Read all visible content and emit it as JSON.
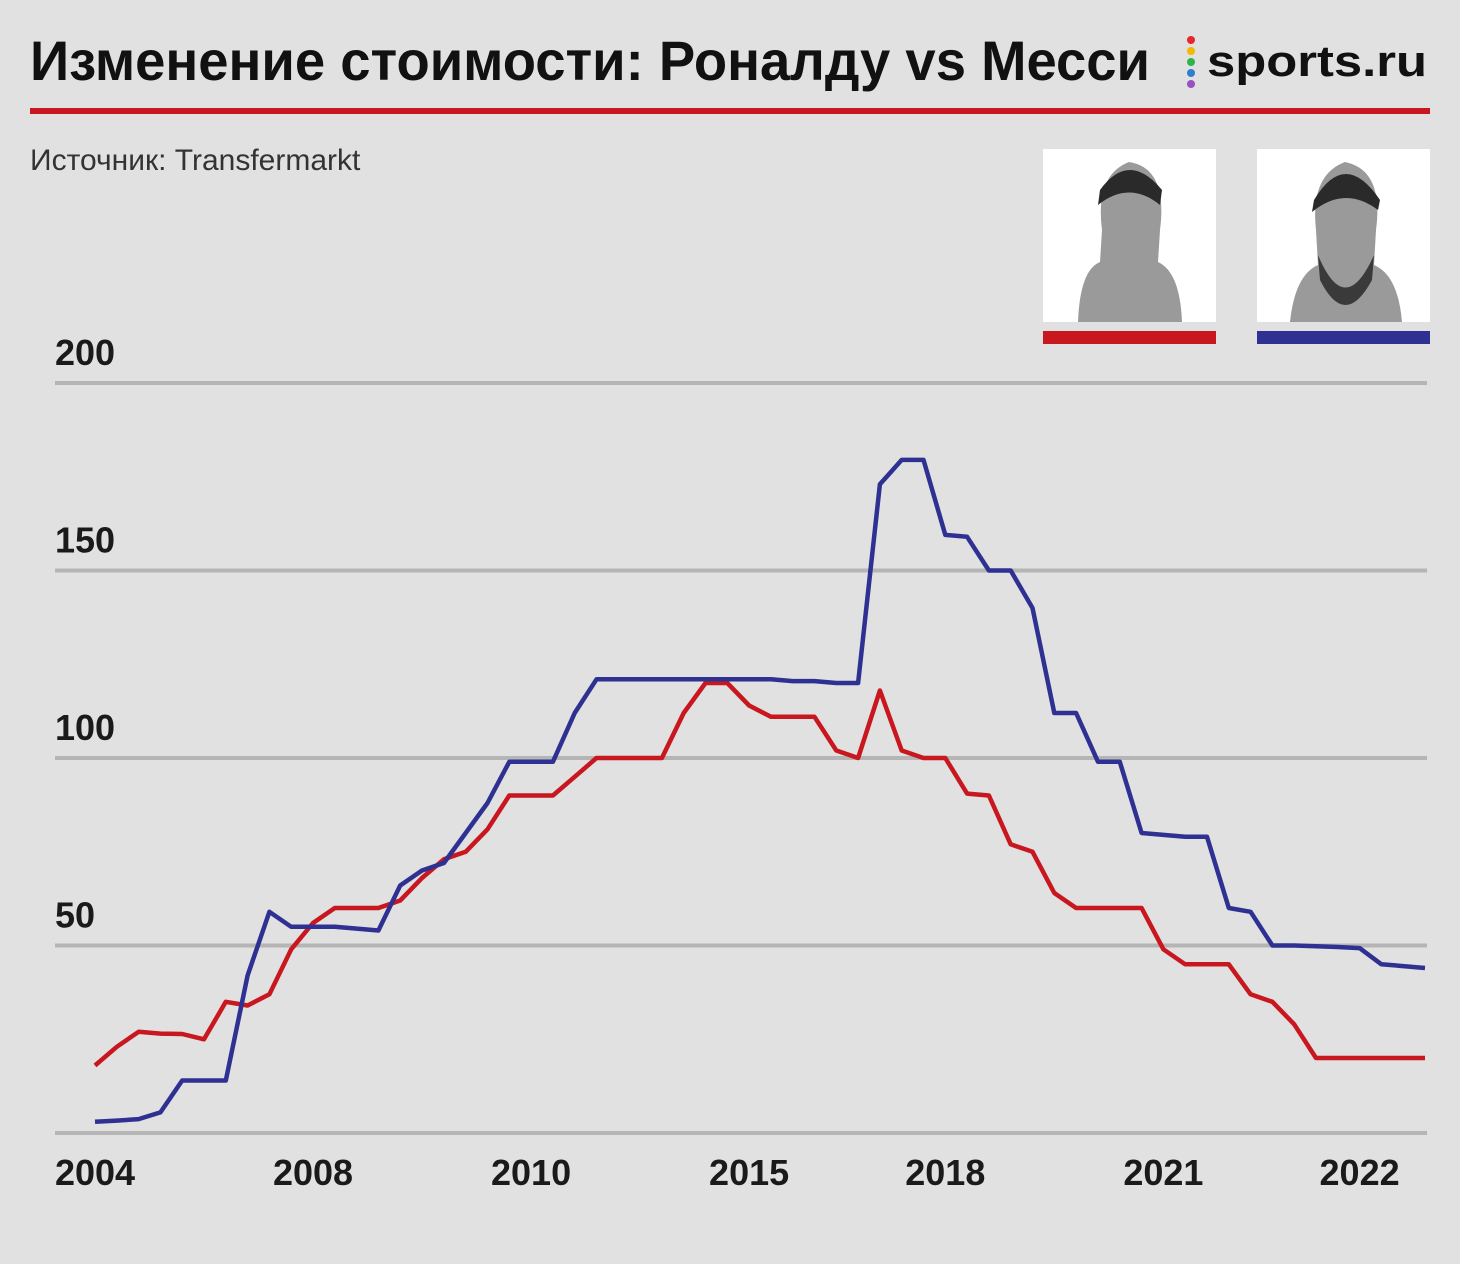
{
  "title": "Изменение стоимости: Роналду vs Месси",
  "logo": "sports.ru",
  "source": "Источник: Transfermarkt",
  "chart_data": {
    "type": "line",
    "categories": [
      "2004",
      null,
      null,
      null,
      null,
      null,
      null,
      null,
      null,
      null,
      "2008",
      null,
      null,
      null,
      null,
      null,
      null,
      null,
      null,
      null,
      "2010",
      null,
      null,
      null,
      null,
      null,
      null,
      null,
      null,
      null,
      "2015",
      null,
      null,
      null,
      null,
      null,
      null,
      null,
      null,
      "2018",
      null,
      null,
      null,
      null,
      null,
      null,
      null,
      null,
      null,
      "2021",
      null,
      null,
      null,
      null,
      null,
      null,
      null,
      null,
      "2022",
      null,
      null,
      null
    ],
    "series": [
      {
        "color": "#c8171e",
        "values": [
          18,
          23,
          27,
          26.5,
          26.4,
          25,
          35,
          34,
          37,
          49,
          56,
          60,
          60,
          60,
          62,
          68,
          73,
          75,
          81,
          90,
          90,
          90,
          95,
          100,
          100,
          100,
          100,
          112,
          120,
          120,
          114,
          111,
          111,
          111,
          102,
          100,
          118,
          102,
          100,
          100,
          90.5,
          90,
          77,
          75,
          64,
          60,
          60,
          60,
          60,
          49,
          45,
          45,
          45,
          37,
          35,
          29,
          20,
          20,
          20,
          20,
          20,
          20
        ]
      },
      {
        "color": "#2e3192",
        "values": [
          3,
          3.3,
          3.7,
          5.5,
          14,
          14,
          14,
          42,
          59,
          55,
          55,
          55,
          54.5,
          54,
          66,
          70,
          72,
          80,
          88,
          99,
          99,
          99,
          112,
          121,
          121,
          121,
          121,
          121,
          121,
          121,
          121,
          121,
          120.5,
          120.5,
          120,
          120,
          173,
          179.5,
          179.5,
          159.5,
          159,
          150,
          150,
          140,
          112,
          112,
          99,
          99,
          80,
          79.5,
          79,
          79,
          60,
          59,
          50,
          50,
          49.8,
          49.6,
          49.3,
          45,
          44.5,
          44
        ]
      }
    ],
    "ylim": [
      0,
      200
    ],
    "yticks": [
      50,
      100,
      150,
      200
    ],
    "grid": true
  }
}
